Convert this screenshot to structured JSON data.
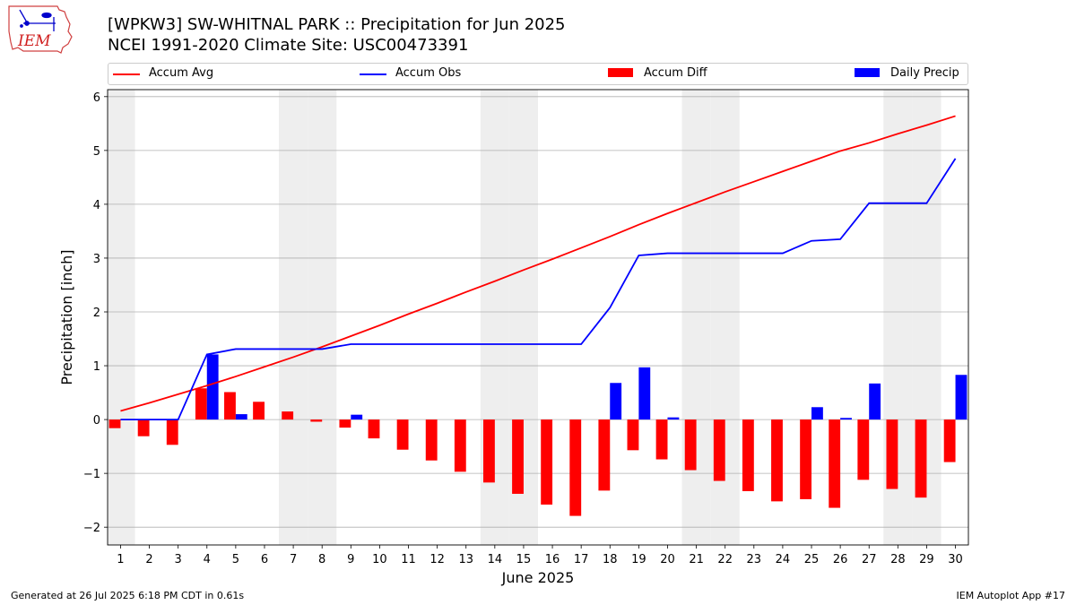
{
  "header": {
    "title_line1": "[WPKW3] SW-WHITNAL PARK :: Precipitation for Jun 2025",
    "title_line2": "NCEI 1991-2020 Climate Site: USC00473391",
    "logo_text": "IEM"
  },
  "footer": {
    "generated": "Generated at 26 Jul 2025 6:18 PM CDT in 0.61s",
    "app": "IEM Autoplot App #17"
  },
  "colors": {
    "avg": "#ff0000",
    "obs": "#0000ff",
    "diff": "#ff0000",
    "daily": "#0000ff",
    "weekend": "#eeeeee",
    "grid": "#b0b0b0"
  },
  "chart_data": {
    "type": "bar",
    "xlabel": "June 2025",
    "ylabel": "Precipitation [inch]",
    "ylim": [
      -2.33,
      6.13
    ],
    "yticks": [
      -2,
      -1,
      0,
      1,
      2,
      3,
      4,
      5,
      6
    ],
    "grid": true,
    "legend_placement": "top",
    "x": [
      1,
      2,
      3,
      4,
      5,
      6,
      7,
      8,
      9,
      10,
      11,
      12,
      13,
      14,
      15,
      16,
      17,
      18,
      19,
      20,
      21,
      22,
      23,
      24,
      25,
      26,
      27,
      28,
      29,
      30
    ],
    "weekend_days": [
      1,
      7,
      8,
      14,
      15,
      21,
      22,
      28,
      29
    ],
    "series": [
      {
        "name": "Accum Avg",
        "kind": "line",
        "values": [
          0.16,
          0.31,
          0.47,
          0.63,
          0.8,
          0.98,
          1.16,
          1.35,
          1.55,
          1.75,
          1.96,
          2.16,
          2.37,
          2.57,
          2.78,
          2.98,
          3.19,
          3.4,
          3.62,
          3.83,
          4.03,
          4.23,
          4.42,
          4.61,
          4.8,
          4.99,
          5.14,
          5.31,
          5.47,
          5.64
        ]
      },
      {
        "name": "Accum Obs",
        "kind": "line",
        "values": [
          0.0,
          0.0,
          0.0,
          1.21,
          1.31,
          1.31,
          1.31,
          1.31,
          1.4,
          1.4,
          1.4,
          1.4,
          1.4,
          1.4,
          1.4,
          1.4,
          1.4,
          2.08,
          3.05,
          3.09,
          3.09,
          3.09,
          3.09,
          3.09,
          3.32,
          3.35,
          4.02,
          4.02,
          4.02,
          4.85
        ]
      },
      {
        "name": "Accum Diff",
        "kind": "bar",
        "values": [
          -0.16,
          -0.31,
          -0.47,
          0.58,
          0.51,
          0.33,
          0.15,
          -0.04,
          -0.15,
          -0.35,
          -0.56,
          -0.76,
          -0.97,
          -1.17,
          -1.38,
          -1.58,
          -1.79,
          -1.32,
          -0.57,
          -0.74,
          -0.94,
          -1.14,
          -1.33,
          -1.52,
          -1.48,
          -1.64,
          -1.12,
          -1.29,
          -1.45,
          -0.79
        ]
      },
      {
        "name": "Daily Precip",
        "kind": "bar",
        "values": [
          0,
          0,
          0,
          1.21,
          0.1,
          0,
          0,
          0,
          0.09,
          0,
          0,
          0,
          0,
          0,
          0,
          0,
          0,
          0.68,
          0.97,
          0.04,
          0,
          0,
          0,
          0,
          0.23,
          0.03,
          0.67,
          0,
          0,
          0.83
        ]
      }
    ]
  }
}
